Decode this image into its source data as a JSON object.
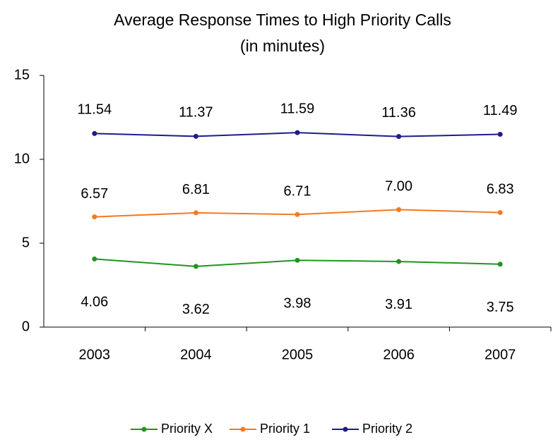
{
  "chart_data": {
    "type": "line",
    "title": "Average Response Times to High Priority Calls",
    "subtitle": "(in minutes)",
    "categories": [
      "2003",
      "2004",
      "2005",
      "2006",
      "2007"
    ],
    "series": [
      {
        "name": "Priority X",
        "color": "#1e961e",
        "values": [
          4.06,
          3.62,
          3.98,
          3.91,
          3.75
        ],
        "value_labels": [
          "4.06",
          "3.62",
          "3.98",
          "3.91",
          "3.75"
        ]
      },
      {
        "name": "Priority 1",
        "color": "#f47a22",
        "values": [
          6.57,
          6.81,
          6.71,
          7.0,
          6.83
        ],
        "value_labels": [
          "6.57",
          "6.81",
          "6.71",
          "7.00",
          "6.83"
        ]
      },
      {
        "name": "Priority 2",
        "color": "#1c1c8c",
        "values": [
          11.54,
          11.37,
          11.59,
          11.36,
          11.49
        ],
        "value_labels": [
          "11.54",
          "11.37",
          "11.59",
          "11.36",
          "11.49"
        ]
      }
    ],
    "ylim": [
      0,
      15
    ],
    "yticks": [
      0,
      5,
      10,
      15
    ],
    "grid": false,
    "legend": "bottom"
  }
}
